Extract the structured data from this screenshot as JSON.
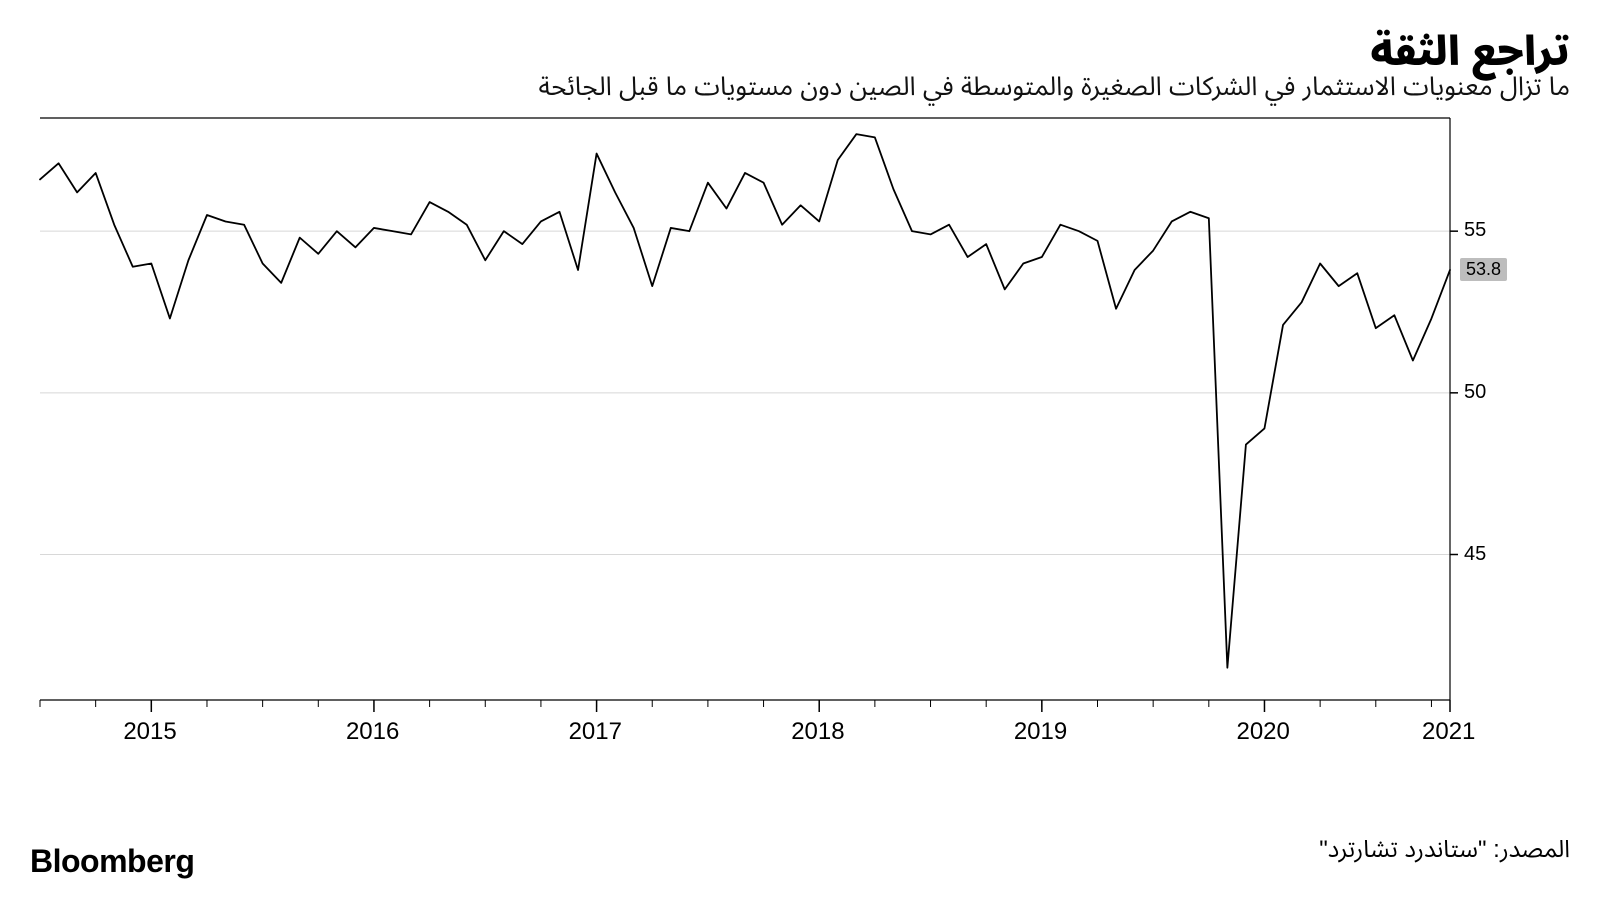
{
  "title": "تراجع الثقة",
  "subtitle": "ما تزال معنويات الاستثمار في الشركات الصغيرة والمتوسطة في الصين دون مستويات ما قبل الجائحة",
  "brand": "Bloomberg",
  "source": "المصدر: \"ستاندرد تشارترد\"",
  "chart": {
    "type": "line",
    "line_color": "#000000",
    "line_width": 1.8,
    "background_color": "#ffffff",
    "grid_color": "#d8d8d8",
    "axis_color": "#000000",
    "tick_color": "#000000",
    "y": {
      "min": 40.5,
      "max": 58.5,
      "ticks": [
        45,
        50,
        55
      ],
      "label_fontsize": 20
    },
    "x": {
      "domain_start": 0,
      "domain_end": 76,
      "year_ticks": [
        {
          "pos": 6,
          "label": "2015"
        },
        {
          "pos": 18,
          "label": "2016"
        },
        {
          "pos": 30,
          "label": "2017"
        },
        {
          "pos": 42,
          "label": "2018"
        },
        {
          "pos": 54,
          "label": "2019"
        },
        {
          "pos": 66,
          "label": "2020"
        },
        {
          "pos": 76,
          "label": "2021"
        }
      ],
      "minor_tick_step": 3,
      "label_fontsize": 24
    },
    "callout": {
      "value": "53.8",
      "y": 53.8,
      "bg": "#bdbdbd"
    },
    "series": [
      56.6,
      57.1,
      56.2,
      56.8,
      55.2,
      53.9,
      54.0,
      52.3,
      54.1,
      55.5,
      55.3,
      55.2,
      54.0,
      53.4,
      54.8,
      54.3,
      55.0,
      54.5,
      55.1,
      55.0,
      54.9,
      55.9,
      55.6,
      55.2,
      54.1,
      55.0,
      54.6,
      55.3,
      55.6,
      53.8,
      57.4,
      56.2,
      55.1,
      53.3,
      55.1,
      55.0,
      56.5,
      55.7,
      56.8,
      56.5,
      55.2,
      55.8,
      55.3,
      57.2,
      58.0,
      57.9,
      56.3,
      55.0,
      54.9,
      55.2,
      54.2,
      54.6,
      53.2,
      54.0,
      54.2,
      55.2,
      55.0,
      54.7,
      52.6,
      53.8,
      54.4,
      55.3,
      55.6,
      55.4,
      41.5,
      48.4,
      48.9,
      52.1,
      52.8,
      54.0,
      53.3,
      53.7,
      52.0,
      52.4,
      51.0,
      52.3,
      53.8
    ]
  }
}
